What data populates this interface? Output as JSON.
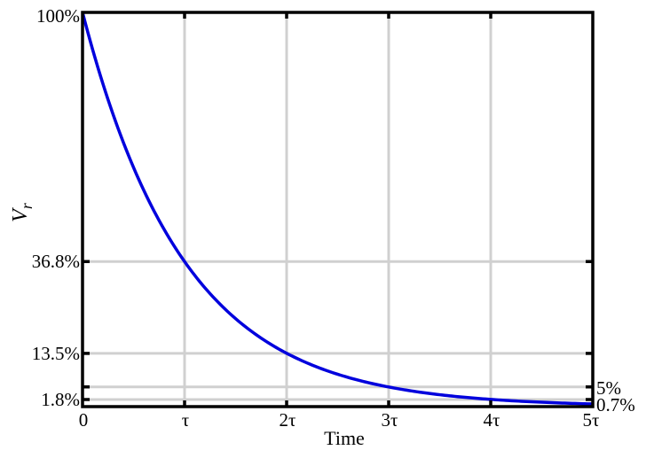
{
  "chart_data": {
    "type": "line",
    "title": "",
    "xlabel": "Time",
    "ylabel": "V",
    "ylabel_subscript": "r",
    "xlim": [
      0,
      5
    ],
    "ylim": [
      0,
      100
    ],
    "grid": true,
    "x_ticks": [
      {
        "value": 0,
        "label": "0"
      },
      {
        "value": 1,
        "label": "τ"
      },
      {
        "value": 2,
        "label": "2τ"
      },
      {
        "value": 3,
        "label": "3τ"
      },
      {
        "value": 4,
        "label": "4τ"
      },
      {
        "value": 5,
        "label": "5τ"
      }
    ],
    "y_ticks_left": [
      {
        "value": 100,
        "label": "100%"
      },
      {
        "value": 36.8,
        "label": "36.8%"
      },
      {
        "value": 13.5,
        "label": "13.5%"
      },
      {
        "value": 1.8,
        "label": "1.8%"
      }
    ],
    "y_ticks_right": [
      {
        "value": 5,
        "label": "5%"
      },
      {
        "value": 0.7,
        "label": "0.7%"
      }
    ],
    "series": [
      {
        "function": "100*exp(-t/τ)",
        "x": [
          0,
          0.25,
          0.5,
          0.75,
          1,
          1.5,
          2,
          2.5,
          3,
          3.5,
          4,
          4.5,
          5
        ],
        "y": [
          100,
          77.9,
          60.7,
          47.2,
          36.8,
          22.3,
          13.5,
          8.2,
          5.0,
          3.0,
          1.8,
          1.1,
          0.7
        ],
        "color": "#0000dd"
      }
    ]
  }
}
